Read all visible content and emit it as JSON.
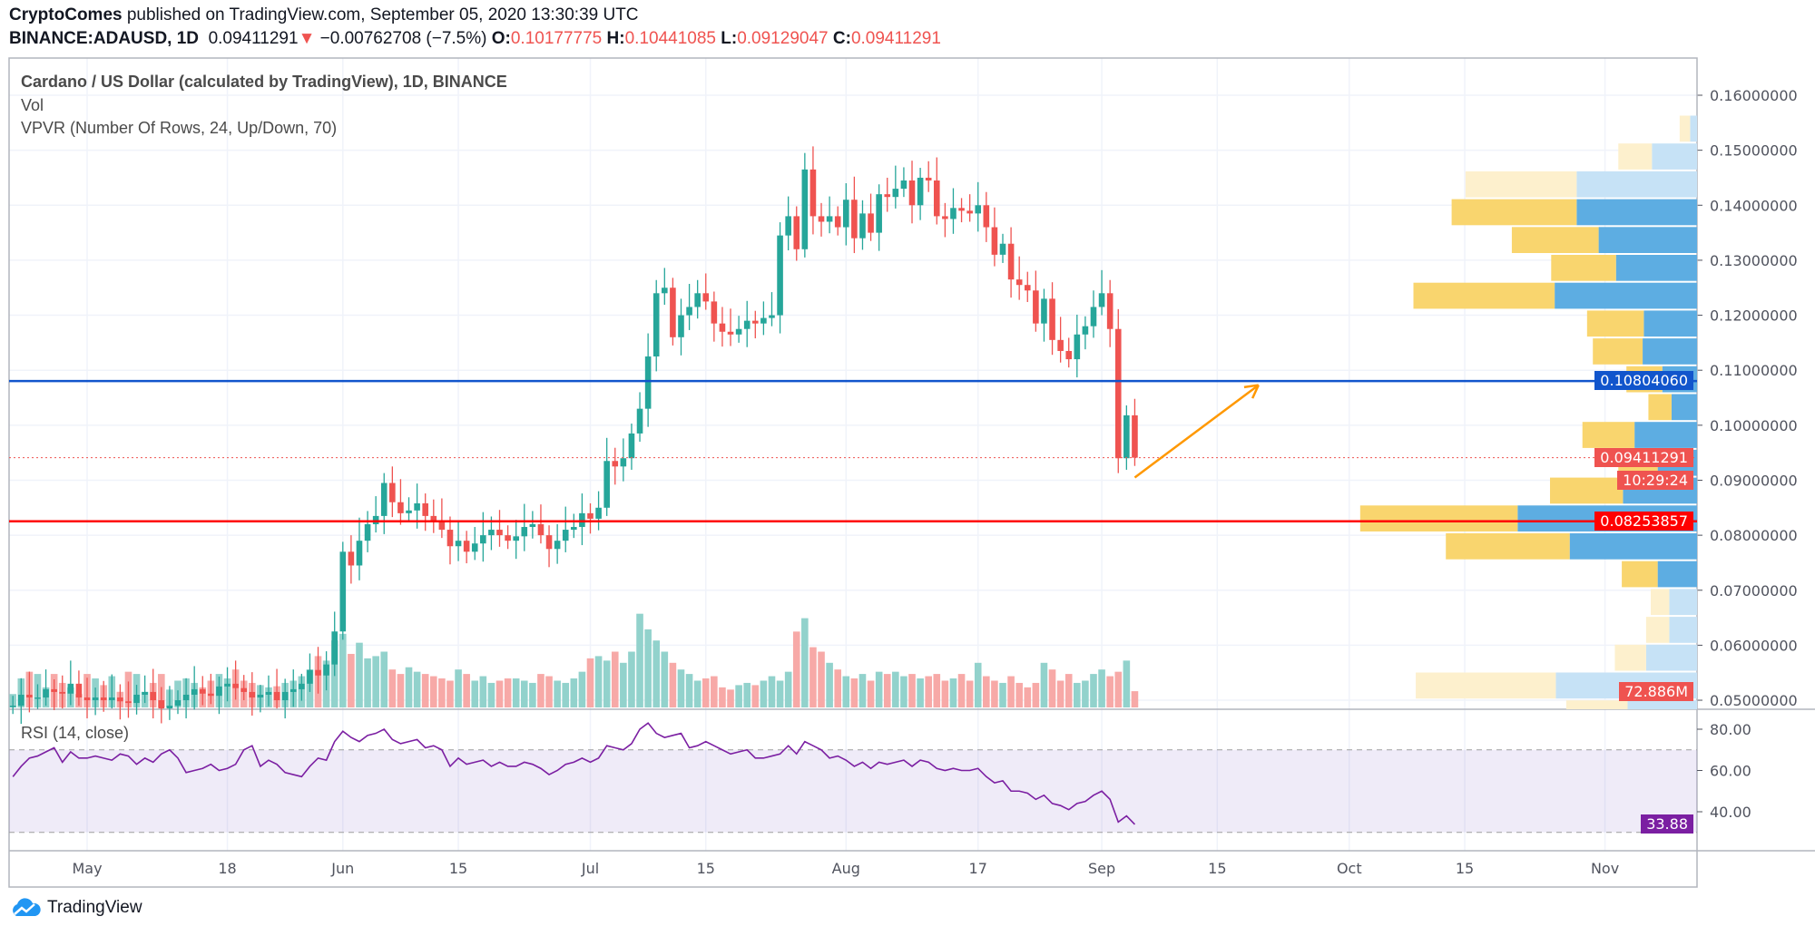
{
  "header": {
    "author": "CryptoComes",
    "published": "published on TradingView.com, September 05, 2020 13:30:39 UTC",
    "symbol": "BINANCE:ADAUSD, 1D",
    "last": "0.09411291",
    "change": "−0.00762708 (−7.5%)",
    "o_label": "O:",
    "o": "0.10177775",
    "h_label": "H:",
    "h": "0.10441085",
    "l_label": "L:",
    "l": "0.09129047",
    "c_label": "C:",
    "c": "0.09411291"
  },
  "legend": {
    "title": "Cardano / US Dollar (calculated by TradingView), 1D, BINANCE",
    "vol": "Vol",
    "vpvr": "VPVR (Number Of Rows, 24, Up/Down, 70)",
    "rsi": "RSI (14, close)"
  },
  "labels": {
    "blue_line": "0.10804060",
    "red_line": "0.08253857",
    "last_price": "0.09411291",
    "countdown": "10:29:24",
    "volume": "72.886M",
    "rsi": "33.88"
  },
  "colors": {
    "up": "#26a69a",
    "down": "#ef5350",
    "blue_line": "#1155cc",
    "red_line": "#ff0000",
    "arrow": "#ff9800",
    "rsi": "#7b1fa2",
    "vp_up": "#5dade2",
    "vp_down": "#f9d56e"
  },
  "logo": "TradingView",
  "chart_data": {
    "type": "candlestick",
    "start_date": "2020-04-22",
    "close": [
      0.049,
      0.051,
      0.0505,
      0.0505,
      0.052,
      0.0515,
      0.0512,
      0.053,
      0.0505,
      0.05,
      0.0505,
      0.05,
      0.0505,
      0.0498,
      0.0495,
      0.051,
      0.0515,
      0.05,
      0.0485,
      0.049,
      0.05,
      0.051,
      0.052,
      0.0512,
      0.0508,
      0.0525,
      0.053,
      0.0522,
      0.0515,
      0.0505,
      0.051,
      0.0515,
      0.05,
      0.0515,
      0.052,
      0.053,
      0.0555,
      0.0545,
      0.0565,
      0.0625,
      0.077,
      0.0745,
      0.079,
      0.082,
      0.0835,
      0.0895,
      0.086,
      0.084,
      0.0845,
      0.0858,
      0.0835,
      0.0825,
      0.081,
      0.078,
      0.079,
      0.077,
      0.0785,
      0.08,
      0.081,
      0.08,
      0.079,
      0.0798,
      0.0815,
      0.082,
      0.08,
      0.0775,
      0.079,
      0.081,
      0.0815,
      0.084,
      0.083,
      0.085,
      0.0935,
      0.0925,
      0.094,
      0.0985,
      0.103,
      0.1125,
      0.124,
      0.125,
      0.116,
      0.12,
      0.1215,
      0.124,
      0.1225,
      0.1185,
      0.117,
      0.1165,
      0.1175,
      0.119,
      0.1185,
      0.1195,
      0.12,
      0.1345,
      0.138,
      0.132,
      0.1465,
      0.138,
      0.137,
      0.138,
      0.136,
      0.141,
      0.134,
      0.1385,
      0.135,
      0.142,
      0.1415,
      0.143,
      0.1445,
      0.14,
      0.145,
      0.1445,
      0.138,
      0.1375,
      0.1395,
      0.139,
      0.1385,
      0.14,
      0.136,
      0.131,
      0.133,
      0.1265,
      0.1255,
      0.1245,
      0.1185,
      0.123,
      0.1155,
      0.1135,
      0.112,
      0.1165,
      0.118,
      0.1215,
      0.124,
      0.1175,
      0.094,
      0.1018,
      0.0941
    ],
    "volume_m": [
      60,
      130,
      160,
      150,
      90,
      150,
      110,
      90,
      60,
      150,
      130,
      100,
      140,
      70,
      160,
      150,
      70,
      110,
      150,
      80,
      120,
      130,
      110,
      90,
      120,
      150,
      130,
      170,
      120,
      110,
      100,
      90,
      95,
      110,
      120,
      140,
      170,
      230,
      210,
      300,
      330,
      240,
      290,
      220,
      230,
      250,
      170,
      150,
      180,
      160,
      150,
      140,
      130,
      120,
      170,
      150,
      120,
      140,
      110,
      120,
      130,
      130,
      120,
      110,
      150,
      140,
      120,
      110,
      130,
      160,
      220,
      230,
      210,
      250,
      200,
      250,
      420,
      350,
      300,
      250,
      200,
      170,
      150,
      120,
      130,
      140,
      90,
      80,
      100,
      110,
      100,
      120,
      140,
      120,
      160,
      340,
      400,
      270,
      250,
      200,
      170,
      140,
      130,
      150,
      120,
      160,
      150,
      160,
      140,
      150,
      130,
      140,
      150,
      120,
      130,
      150,
      120,
      200,
      140,
      120,
      110,
      140,
      110,
      90,
      110,
      200,
      170,
      120,
      150,
      110,
      120,
      150,
      170,
      140,
      160,
      210,
      72.886
    ],
    "rsi": [
      57,
      62,
      66,
      67,
      69,
      71,
      64,
      69,
      66,
      66,
      67,
      66,
      65,
      68,
      67,
      63,
      66,
      64,
      68,
      70,
      66,
      59,
      60,
      61,
      63,
      60,
      61,
      63,
      70,
      72,
      62,
      65,
      63,
      59,
      58,
      57,
      62,
      66,
      65,
      74,
      79,
      76,
      74,
      77,
      78,
      80,
      75,
      73,
      74,
      75,
      71,
      72,
      70,
      62,
      66,
      63,
      64,
      65,
      62,
      64,
      62,
      62,
      64,
      63,
      61,
      58,
      60,
      63,
      64,
      66,
      64,
      66,
      72,
      71,
      70,
      73,
      80,
      83,
      78,
      76,
      77,
      78,
      71,
      72,
      74,
      72,
      70,
      68,
      69,
      70,
      66,
      66,
      67,
      68,
      72,
      68,
      74,
      72,
      70,
      66,
      67,
      65,
      62,
      64,
      61,
      64,
      63,
      64,
      65,
      62,
      65,
      64,
      61,
      60,
      61,
      60,
      60,
      61,
      57,
      54,
      55,
      50,
      50,
      49,
      46,
      48,
      44,
      43,
      41,
      44,
      45,
      48,
      50,
      46,
      35,
      38,
      33.88
    ],
    "horizontal_levels": [
      0.1080406,
      0.08253857
    ],
    "vpvr_rows": [
      {
        "up": 6,
        "down": 9,
        "faded": true
      },
      {
        "up": 39,
        "down": 29,
        "faded": true
      },
      {
        "up": 104,
        "down": 96,
        "faded": true
      },
      {
        "up": 104,
        "down": 108
      },
      {
        "up": 85,
        "down": 75
      },
      {
        "up": 70,
        "down": 56
      },
      {
        "up": 123,
        "down": 122
      },
      {
        "up": 46,
        "down": 49
      },
      {
        "up": 47,
        "down": 43
      },
      {
        "up": 30,
        "down": 31
      },
      {
        "up": 22,
        "down": 20
      },
      {
        "up": 54,
        "down": 45
      },
      {
        "up": 34,
        "down": 34
      },
      {
        "up": 64,
        "down": 63
      },
      {
        "up": 155,
        "down": 136
      },
      {
        "up": 110,
        "down": 107
      },
      {
        "up": 34,
        "down": 31
      },
      {
        "up": 24,
        "down": 16,
        "faded": true
      },
      {
        "up": 24,
        "down": 20,
        "faded": true
      },
      {
        "up": 44,
        "down": 27,
        "faded": true
      },
      {
        "up": 122,
        "down": 121,
        "faded": true
      },
      {
        "up": 60,
        "down": 53,
        "faded": true
      }
    ],
    "y_ticks": [
      "0.16000000",
      "0.15000000",
      "0.14000000",
      "0.13000000",
      "0.12000000",
      "0.11000000",
      "0.10000000",
      "0.09000000",
      "0.08000000",
      "0.07000000",
      "0.06000000",
      "0.05000000"
    ],
    "y_tick_values": [
      0.16,
      0.15,
      0.14,
      0.13,
      0.12,
      0.11,
      0.1,
      0.09,
      0.08,
      0.07,
      0.06,
      0.05
    ],
    "rsi_ticks": [
      "80.00",
      "60.00",
      "40.00"
    ],
    "x_ticks": [
      {
        "label": "May",
        "date": "2020-05-01"
      },
      {
        "label": "18",
        "date": "2020-05-18"
      },
      {
        "label": "Jun",
        "date": "2020-06-01"
      },
      {
        "label": "15",
        "date": "2020-06-15"
      },
      {
        "label": "Jul",
        "date": "2020-07-01"
      },
      {
        "label": "15",
        "date": "2020-07-15"
      },
      {
        "label": "Aug",
        "date": "2020-08-01"
      },
      {
        "label": "17",
        "date": "2020-08-17"
      },
      {
        "label": "Sep",
        "date": "2020-09-01"
      },
      {
        "label": "15",
        "date": "2020-09-15"
      },
      {
        "label": "Oct",
        "date": "2020-10-01"
      },
      {
        "label": "15",
        "date": "2020-10-15"
      },
      {
        "label": "Nov",
        "date": "2020-11-01"
      }
    ],
    "arrow": {
      "from": {
        "date": "2020-09-05",
        "price": 0.0905
      },
      "to": {
        "date": "2020-09-20",
        "price": 0.1073
      }
    }
  }
}
